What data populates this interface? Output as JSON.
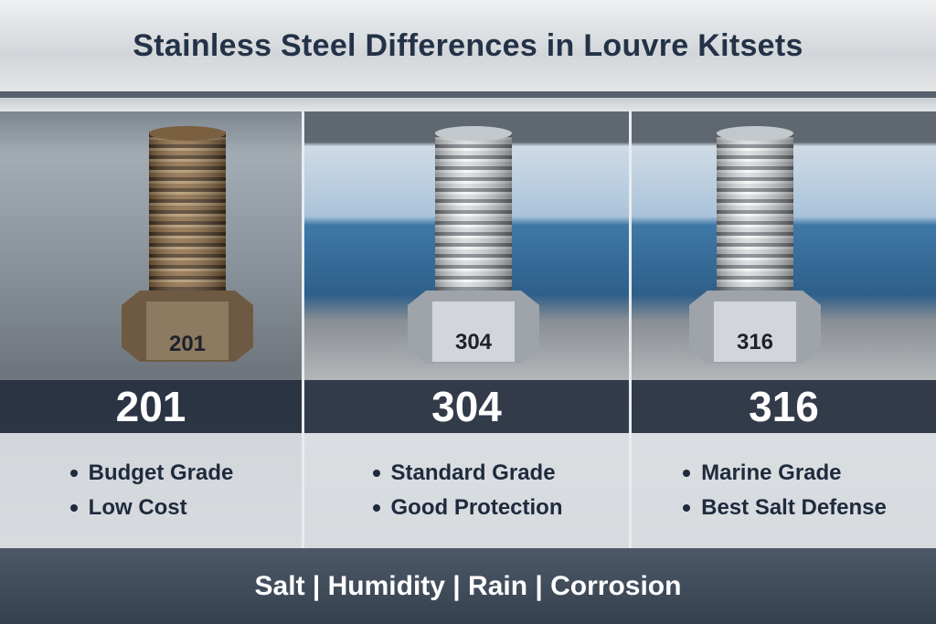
{
  "header": {
    "title": "Stainless Steel Differences in Louvre Kitsets"
  },
  "panels": [
    {
      "stamp": "201",
      "grade": "201",
      "bullets": [
        "Budget Grade",
        "Low Cost"
      ]
    },
    {
      "stamp": "304",
      "grade": "304",
      "bullets": [
        "Standard Grade",
        "Good Protection"
      ]
    },
    {
      "stamp": "316",
      "grade": "316",
      "bullets": [
        "Marine Grade",
        "Best Salt Defense"
      ]
    }
  ],
  "footer": {
    "text": "Salt | Humidity | Rain | Corrosion"
  }
}
